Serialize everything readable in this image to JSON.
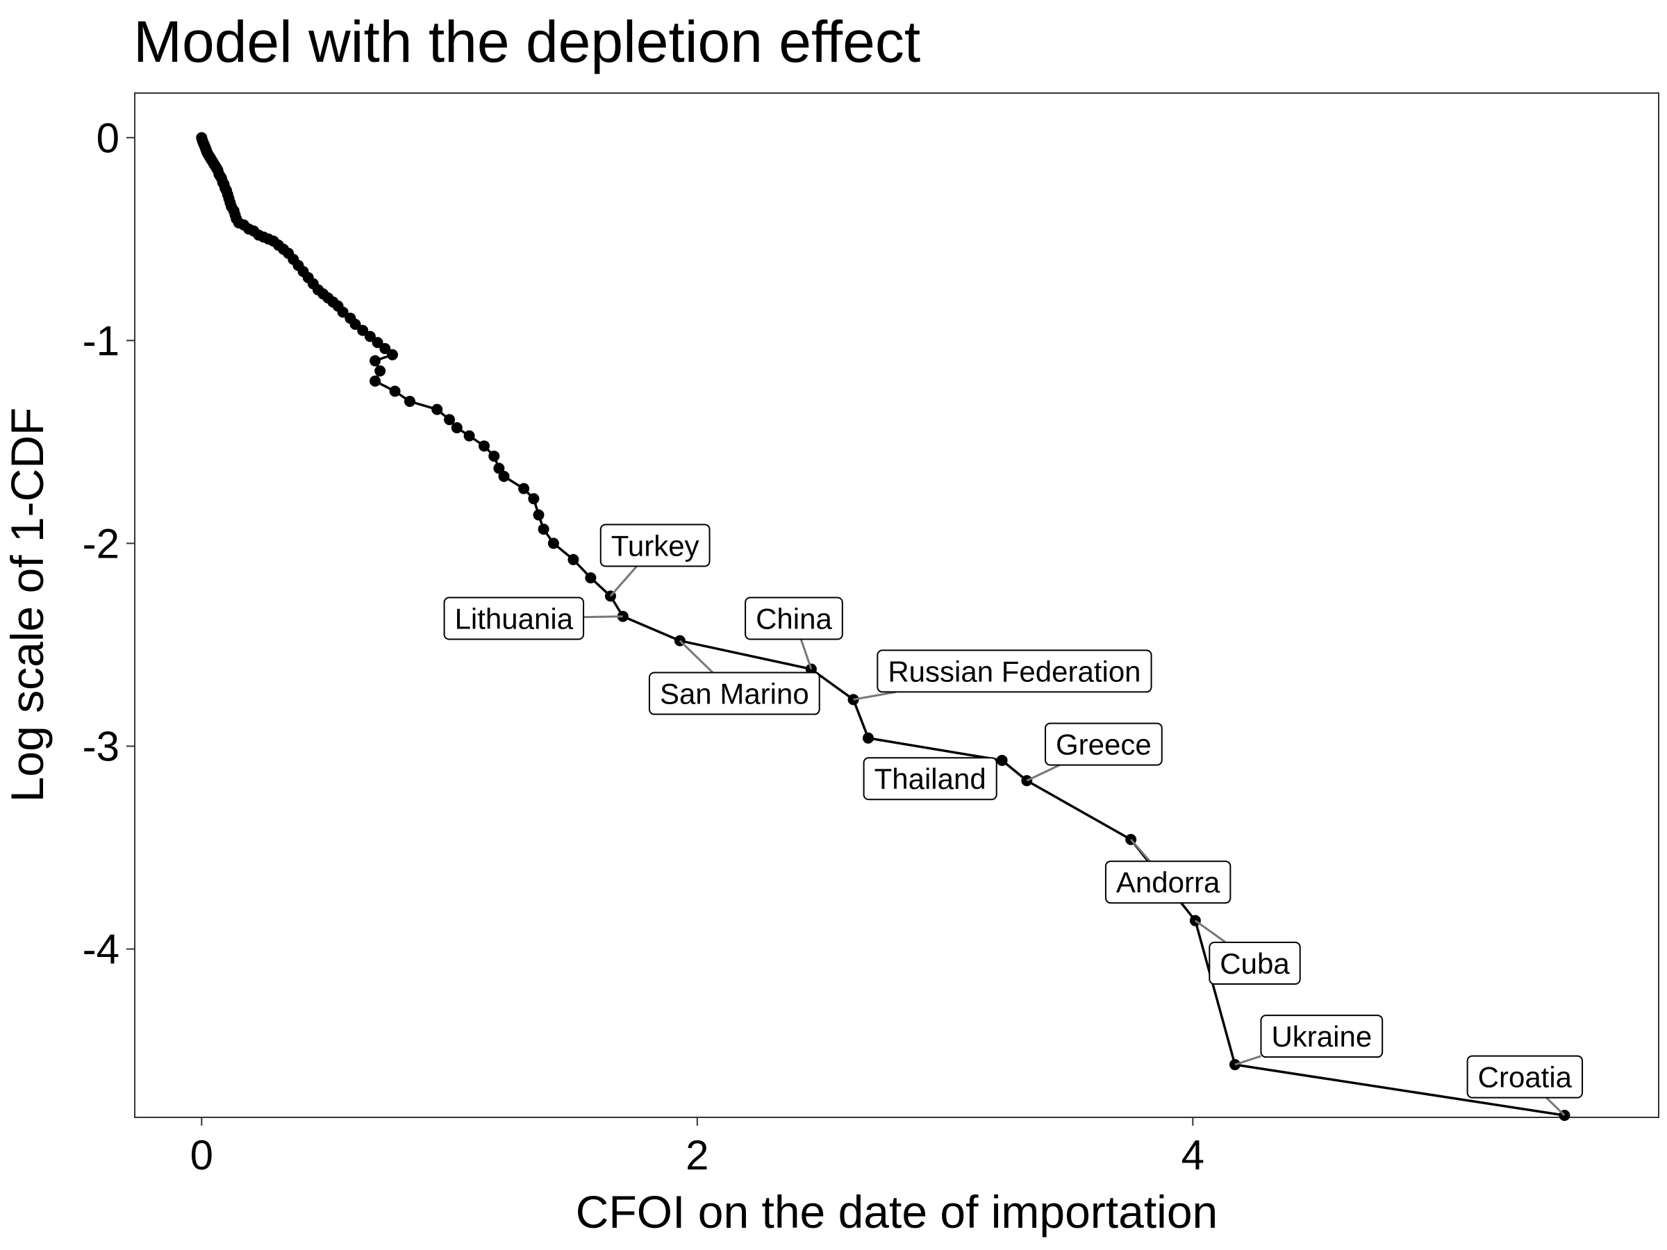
{
  "chart_data": {
    "type": "line",
    "title": "Model with the depletion effect",
    "xlabel": "CFOI on the date of importation",
    "ylabel": "Log scale of 1-CDF",
    "xlim": [
      -0.27,
      5.88
    ],
    "ylim": [
      -4.83,
      0.22
    ],
    "xticks": [
      0,
      2,
      4
    ],
    "xtick_labels": [
      "0",
      "2",
      "4"
    ],
    "yticks": [
      0,
      -1,
      -2,
      -3,
      -4
    ],
    "ytick_labels": [
      "0",
      "-1",
      "-2",
      "-3",
      "-4"
    ],
    "grid": false,
    "line_color": "#000000",
    "series": [
      {
        "points": [
          [
            0.0,
            0.0
          ],
          [
            0.002,
            -0.01
          ],
          [
            0.005,
            -0.02
          ],
          [
            0.008,
            -0.03
          ],
          [
            0.012,
            -0.04
          ],
          [
            0.015,
            -0.05
          ],
          [
            0.018,
            -0.06
          ],
          [
            0.021,
            -0.07
          ],
          [
            0.025,
            -0.08
          ],
          [
            0.03,
            -0.09
          ],
          [
            0.035,
            -0.1
          ],
          [
            0.04,
            -0.11
          ],
          [
            0.045,
            -0.12
          ],
          [
            0.05,
            -0.13
          ],
          [
            0.055,
            -0.14
          ],
          [
            0.06,
            -0.15
          ],
          [
            0.065,
            -0.16
          ],
          [
            0.07,
            -0.18
          ],
          [
            0.075,
            -0.19
          ],
          [
            0.08,
            -0.2
          ],
          [
            0.085,
            -0.22
          ],
          [
            0.09,
            -0.23
          ],
          [
            0.095,
            -0.25
          ],
          [
            0.1,
            -0.26
          ],
          [
            0.105,
            -0.28
          ],
          [
            0.11,
            -0.3
          ],
          [
            0.115,
            -0.32
          ],
          [
            0.12,
            -0.34
          ],
          [
            0.13,
            -0.36
          ],
          [
            0.135,
            -0.38
          ],
          [
            0.14,
            -0.4
          ],
          [
            0.15,
            -0.42
          ],
          [
            0.17,
            -0.43
          ],
          [
            0.19,
            -0.45
          ],
          [
            0.21,
            -0.46
          ],
          [
            0.23,
            -0.48
          ],
          [
            0.25,
            -0.49
          ],
          [
            0.27,
            -0.5
          ],
          [
            0.29,
            -0.51
          ],
          [
            0.31,
            -0.53
          ],
          [
            0.33,
            -0.55
          ],
          [
            0.35,
            -0.57
          ],
          [
            0.37,
            -0.6
          ],
          [
            0.39,
            -0.63
          ],
          [
            0.41,
            -0.66
          ],
          [
            0.43,
            -0.69
          ],
          [
            0.45,
            -0.72
          ],
          [
            0.47,
            -0.75
          ],
          [
            0.49,
            -0.77
          ],
          [
            0.51,
            -0.79
          ],
          [
            0.53,
            -0.81
          ],
          [
            0.55,
            -0.83
          ],
          [
            0.57,
            -0.86
          ],
          [
            0.6,
            -0.89
          ],
          [
            0.62,
            -0.92
          ],
          [
            0.65,
            -0.95
          ],
          [
            0.68,
            -0.98
          ],
          [
            0.71,
            -1.01
          ],
          [
            0.74,
            -1.04
          ],
          [
            0.77,
            -1.07
          ],
          [
            0.7,
            -1.1
          ],
          [
            0.72,
            -1.15
          ],
          [
            0.7,
            -1.2
          ],
          [
            0.78,
            -1.25
          ],
          [
            0.84,
            -1.3
          ],
          [
            0.95,
            -1.34
          ],
          [
            1.0,
            -1.39
          ],
          [
            1.03,
            -1.43
          ],
          [
            1.08,
            -1.47
          ],
          [
            1.14,
            -1.52
          ],
          [
            1.18,
            -1.57
          ],
          [
            1.2,
            -1.63
          ],
          [
            1.22,
            -1.67
          ],
          [
            1.3,
            -1.73
          ],
          [
            1.34,
            -1.78
          ],
          [
            1.36,
            -1.86
          ],
          [
            1.38,
            -1.93
          ],
          [
            1.42,
            -2.0
          ],
          [
            1.5,
            -2.08
          ],
          [
            1.57,
            -2.17
          ],
          [
            1.65,
            -2.26
          ],
          [
            1.7,
            -2.36
          ],
          [
            1.93,
            -2.48
          ],
          [
            2.46,
            -2.62
          ],
          [
            2.63,
            -2.77
          ],
          [
            2.69,
            -2.96
          ],
          [
            3.23,
            -3.07
          ],
          [
            3.33,
            -3.17
          ],
          [
            3.75,
            -3.46
          ],
          [
            4.01,
            -3.86
          ],
          [
            4.17,
            -4.57
          ],
          [
            5.5,
            -4.82
          ]
        ]
      }
    ],
    "labels": [
      {
        "text": "Turkey",
        "x": 1.65,
        "y": -2.26,
        "lx": 1.83,
        "ly": -2.01
      },
      {
        "text": "Lithuania",
        "x": 1.7,
        "y": -2.36,
        "lx": 1.26,
        "ly": -2.37
      },
      {
        "text": "China",
        "x": 2.46,
        "y": -2.62,
        "lx": 2.39,
        "ly": -2.37
      },
      {
        "text": "San Marino",
        "x": 1.93,
        "y": -2.48,
        "lx": 2.15,
        "ly": -2.74
      },
      {
        "text": "Russian Federation",
        "x": 2.63,
        "y": -2.77,
        "lx": 3.28,
        "ly": -2.63
      },
      {
        "text": "Greece",
        "x": 3.33,
        "y": -3.17,
        "lx": 3.64,
        "ly": -2.99
      },
      {
        "text": "Thailand",
        "x": 3.23,
        "y": -3.07,
        "lx": 2.94,
        "ly": -3.16
      },
      {
        "text": "Andorra",
        "x": 3.75,
        "y": -3.46,
        "lx": 3.9,
        "ly": -3.67
      },
      {
        "text": "Cuba",
        "x": 4.01,
        "y": -3.86,
        "lx": 4.25,
        "ly": -4.07
      },
      {
        "text": "Ukraine",
        "x": 4.17,
        "y": -4.57,
        "lx": 4.52,
        "ly": -4.43
      },
      {
        "text": "Croatia",
        "x": 5.5,
        "y": -4.82,
        "lx": 5.34,
        "ly": -4.63
      }
    ]
  }
}
